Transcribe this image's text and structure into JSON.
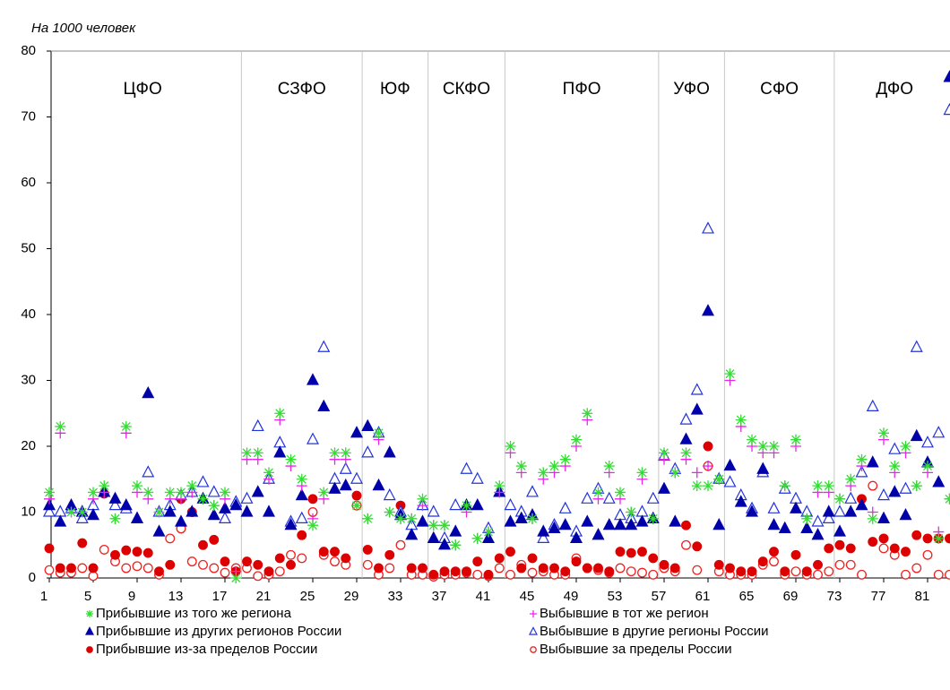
{
  "chart_data": {
    "type": "scatter",
    "y_label": "На 1000 человек",
    "x": [
      1,
      2,
      3,
      4,
      5,
      6,
      7,
      8,
      9,
      10,
      11,
      12,
      13,
      14,
      15,
      16,
      17,
      18,
      19,
      20,
      21,
      22,
      23,
      24,
      25,
      26,
      27,
      28,
      29,
      30,
      31,
      32,
      33,
      34,
      35,
      36,
      37,
      38,
      39,
      40,
      41,
      42,
      43,
      44,
      45,
      46,
      47,
      48,
      49,
      50,
      51,
      52,
      53,
      54,
      55,
      56,
      57,
      58,
      59,
      60,
      61,
      62,
      63,
      64,
      65,
      66,
      67,
      68,
      69,
      70,
      71,
      72,
      73,
      74,
      75,
      76,
      77,
      78,
      79,
      80,
      81,
      82,
      83
    ],
    "xlim": [
      1,
      83
    ],
    "xticks": [
      1,
      5,
      9,
      13,
      17,
      21,
      25,
      29,
      33,
      37,
      41,
      45,
      49,
      53,
      57,
      61,
      65,
      69,
      73,
      77,
      81
    ],
    "ylim": [
      0,
      80
    ],
    "yticks": [
      0,
      10,
      20,
      30,
      40,
      50,
      60,
      70,
      80
    ],
    "districts": [
      "ЦФО",
      "СЗФО",
      "ЮФ",
      "СКФО",
      "ПФО",
      "УФО",
      "СФО",
      "ДФО"
    ],
    "dividers": [
      0.5,
      18.5,
      29.5,
      35.5,
      42.5,
      56.5,
      62.5,
      72.5,
      83.5
    ],
    "series": [
      {
        "name": "Прибывшие из того же региона",
        "color": "#33dd33",
        "marker": "asterisk",
        "values": [
          13,
          23,
          10,
          10,
          13,
          14,
          9,
          23,
          14,
          13,
          10,
          13,
          13,
          14,
          12,
          11,
          13,
          0,
          19,
          19,
          16,
          25,
          18,
          15,
          8,
          13,
          19,
          19,
          11,
          9,
          22,
          10,
          9,
          9,
          12,
          8,
          8,
          5,
          11,
          6,
          7,
          14,
          20,
          17,
          9,
          16,
          17,
          18,
          21,
          25,
          13,
          17,
          13,
          10,
          16,
          9,
          19,
          16,
          19,
          14,
          14,
          15,
          31,
          24,
          21,
          20,
          20,
          14,
          21,
          9,
          14,
          14,
          12,
          15,
          18,
          9,
          22,
          17,
          20,
          14,
          17,
          6,
          12
        ]
      },
      {
        "name": "Выбывшие в тот же регион",
        "color": "#ee22ee",
        "marker": "plus",
        "values": [
          12,
          22,
          10,
          10,
          12,
          13,
          9,
          22,
          13,
          12,
          10,
          12,
          12,
          13,
          12,
          11,
          12,
          1,
          18,
          18,
          15,
          24,
          17,
          14,
          9,
          12,
          18,
          18,
          11,
          9,
          21,
          10,
          9,
          9,
          11,
          8,
          8,
          5,
          10,
          6,
          7,
          13,
          19,
          16,
          9,
          15,
          16,
          17,
          20,
          24,
          12,
          16,
          12,
          10,
          15,
          9,
          18,
          16,
          18,
          16,
          17,
          15,
          30,
          23,
          20,
          19,
          19,
          14,
          20,
          9,
          13,
          13,
          12,
          14,
          17,
          10,
          21,
          16,
          19,
          14,
          16,
          7,
          12
        ]
      },
      {
        "name": "Прибывшие из других регионов России",
        "color": "#0000aa",
        "marker": "triangle",
        "values": [
          11,
          8.5,
          11,
          10,
          9.5,
          13,
          12,
          11,
          9,
          28,
          7,
          10,
          8.5,
          10,
          12,
          9.5,
          10.5,
          11,
          10,
          13,
          10,
          19,
          8,
          12.5,
          30,
          26,
          13.5,
          14,
          22,
          23,
          14,
          19,
          9.5,
          6.5,
          8.5,
          6,
          5,
          7,
          11,
          11,
          6,
          13,
          8.5,
          9,
          9.5,
          7,
          7.5,
          8,
          6,
          8.5,
          6.5,
          8,
          8,
          8,
          8.5,
          9,
          13.5,
          8.5,
          21,
          25.5,
          40.5,
          8,
          17,
          11.5,
          10,
          16.5,
          8,
          7.5,
          10.5,
          7.5,
          6.5,
          10,
          7,
          10,
          11,
          17.5,
          9,
          13,
          9.5,
          21.5,
          17.5,
          14.5,
          76
        ]
      },
      {
        "name": "Выбывшие в другие регионы России",
        "color": "#2233dd",
        "marker": "triangle-open",
        "values": [
          10,
          10,
          10.5,
          9,
          11,
          13,
          11,
          10.5,
          9,
          16,
          10,
          11,
          12.5,
          13,
          14.5,
          13,
          9,
          11.5,
          12,
          23,
          15,
          20.5,
          8.5,
          9,
          21,
          35,
          15,
          16.5,
          15,
          19,
          22,
          12.5,
          10,
          8,
          11,
          10,
          6,
          11,
          16.5,
          15,
          7.5,
          13,
          11,
          10,
          13,
          6,
          8,
          10.5,
          7,
          12,
          13.5,
          12,
          9.5,
          9,
          10,
          12,
          18.5,
          16.5,
          24,
          28.5,
          53,
          15,
          14.5,
          12.5,
          10.5,
          16,
          10.5,
          13.5,
          12,
          10,
          8.5,
          9,
          10,
          12,
          16,
          26,
          12.5,
          19.5,
          13.5,
          35,
          20.5,
          22,
          71
        ]
      },
      {
        "name": "Прибывшие из-за пределов России",
        "color": "#dd0000",
        "marker": "circle",
        "values": [
          4.5,
          1.5,
          1.5,
          5.3,
          1.5,
          12.8,
          3.5,
          4.2,
          4,
          3.8,
          1,
          2,
          12,
          10,
          5,
          5.8,
          2.5,
          1,
          2.5,
          2,
          1,
          3,
          2,
          6.5,
          12,
          4,
          4,
          3,
          12.5,
          4.3,
          1.5,
          3.5,
          11,
          1.5,
          1.5,
          0.5,
          1,
          1,
          1,
          2.5,
          0.5,
          3,
          4,
          1.5,
          3,
          1.5,
          1.5,
          1,
          2.5,
          1.5,
          1.5,
          1,
          4,
          3.8,
          4,
          3,
          2,
          1.5,
          8,
          4.8,
          20,
          2,
          1.5,
          1,
          1,
          2.5,
          4,
          1,
          3.5,
          1,
          2,
          4.5,
          5,
          4.5,
          12,
          5.5,
          6,
          4.5,
          4,
          6.5,
          6,
          6,
          6
        ]
      },
      {
        "name": "Выбывшие за пределы России",
        "color": "#ee2222",
        "marker": "circle-open",
        "values": [
          1.2,
          0.8,
          0.8,
          1.5,
          0.3,
          4.3,
          2.5,
          1.5,
          1.8,
          1.5,
          0.5,
          6,
          7.5,
          2.5,
          2,
          1.5,
          0.8,
          1.5,
          1.5,
          0.3,
          0.5,
          1,
          3.5,
          3,
          10,
          3.5,
          2.5,
          2,
          11,
          2,
          0.5,
          1.5,
          5,
          0.5,
          0.5,
          0.2,
          0.5,
          0.5,
          0.8,
          0.5,
          0.3,
          1.5,
          0.5,
          2,
          0.8,
          1,
          0.5,
          0.5,
          3,
          1.5,
          1.2,
          0.8,
          1.5,
          1,
          0.8,
          0.5,
          1.5,
          1,
          5,
          1.2,
          17,
          1,
          0.5,
          0.5,
          0.5,
          2,
          2.5,
          0.5,
          1,
          0.5,
          0.5,
          1,
          2,
          2,
          0.5,
          14,
          4.5,
          3.5,
          0.5,
          1.5,
          3.5,
          0.5,
          0.5
        ]
      }
    ]
  }
}
